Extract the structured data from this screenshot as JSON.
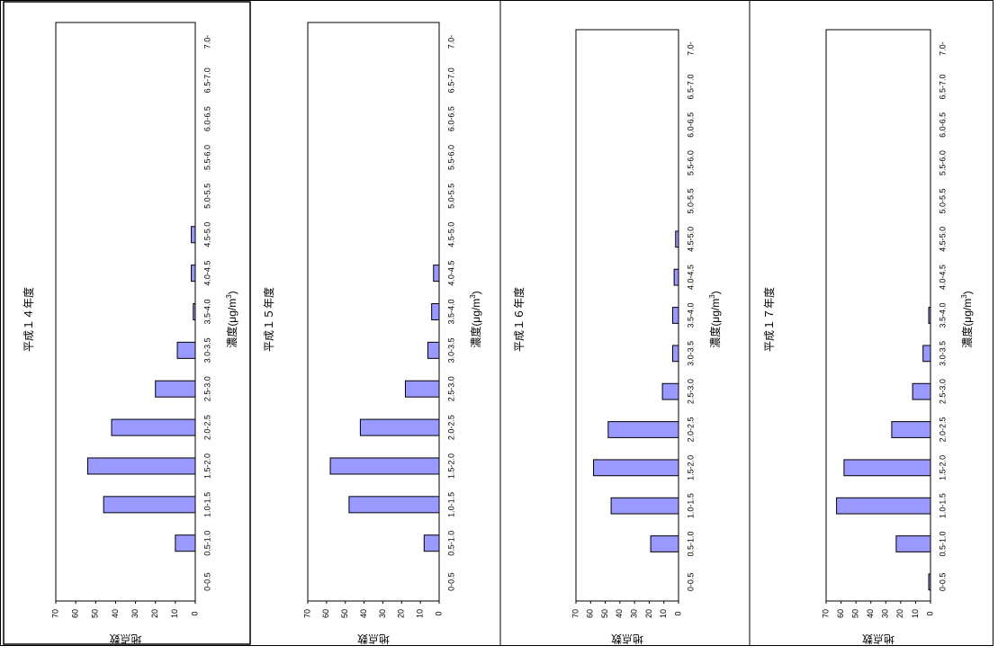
{
  "chart_data": [
    {
      "type": "bar",
      "orientation": "horizontal",
      "title": "平成１４年度",
      "xlabel": "濃度(μg/m3)",
      "ylabel": "地点数",
      "ylim": [
        0,
        70
      ],
      "yticks": [
        0,
        10,
        20,
        30,
        40,
        50,
        60,
        70
      ],
      "categories": [
        "0-0.5",
        "0.5-1.0",
        "1.0-1.5",
        "1.5-2.0",
        "2.0-2.5",
        "2.5-3.0",
        "3.0-3.5",
        "3.5-4.0",
        "4.0-4.5",
        "4.5-5.0",
        "5.0-5.5",
        "5.5-6.0",
        "6.0-6.5",
        "6.5-7.0",
        "7.0-"
      ],
      "values": [
        0,
        10,
        46,
        54,
        42,
        20,
        9,
        1,
        2,
        2,
        0,
        0,
        0,
        0,
        0
      ],
      "bar_color": "#9999ff"
    },
    {
      "type": "bar",
      "orientation": "horizontal",
      "title": "平成１５年度",
      "xlabel": "濃度(μg/m3)",
      "ylabel": "地点数",
      "ylim": [
        0,
        70
      ],
      "yticks": [
        0,
        10,
        20,
        30,
        40,
        50,
        60,
        70
      ],
      "categories": [
        "0-0.5",
        "0.5-1.0",
        "1.0-1.5",
        "1.5-2.0",
        "2.0-2.5",
        "2.5-3.0",
        "3.0-3.5",
        "3.5-4.0",
        "4.0-4.5",
        "4.5-5.0",
        "5.0-5.5",
        "5.5-6.0",
        "6.0-6.5",
        "6.5-7.0",
        "7.0-"
      ],
      "values": [
        0,
        8,
        48,
        58,
        42,
        18,
        6,
        4,
        3,
        0,
        0,
        0,
        0,
        0,
        0
      ],
      "bar_color": "#9999ff"
    },
    {
      "type": "bar",
      "orientation": "horizontal",
      "title": "平成１６年度",
      "xlabel": "濃度(μg/m3)",
      "ylabel": "地点数",
      "ylim": [
        0,
        70
      ],
      "yticks": [
        0,
        10,
        20,
        30,
        40,
        50,
        60,
        70
      ],
      "categories": [
        "0-0.5",
        "0.5-1.0",
        "1.0-1.5",
        "1.5-2.0",
        "2.0-2.5",
        "2.5-3.0",
        "3.0-3.5",
        "3.5-4.0",
        "4.0-4.5",
        "4.5-5.0",
        "5.0-5.5",
        "5.5-6.0",
        "6.0-6.5",
        "6.5-7.0",
        "7.0-"
      ],
      "values": [
        0,
        19,
        46,
        58,
        48,
        11,
        4,
        4,
        3,
        2,
        0,
        0,
        0,
        0,
        0
      ],
      "bar_color": "#9999ff"
    },
    {
      "type": "bar",
      "orientation": "horizontal",
      "title": "平成１７年度",
      "xlabel": "濃度(μg/m3)",
      "ylabel": "地点数",
      "ylim": [
        0,
        70
      ],
      "yticks": [
        0,
        10,
        20,
        30,
        40,
        50,
        60,
        70
      ],
      "categories": [
        "0-0.5",
        "0.5-1.0",
        "1.0-1.5",
        "1.5-2.0",
        "2.0-2.5",
        "2.5-3.0",
        "3.0-3.5",
        "3.5-4.0",
        "4.0-4.5",
        "4.5-5.0",
        "5.0-5.5",
        "5.5-6.0",
        "6.0-6.5",
        "6.5-7.0",
        "7.0-"
      ],
      "values": [
        1,
        23,
        63,
        58,
        26,
        12,
        5,
        1,
        0,
        0,
        0,
        0,
        0,
        0,
        0
      ],
      "bar_color": "#9999ff"
    }
  ]
}
